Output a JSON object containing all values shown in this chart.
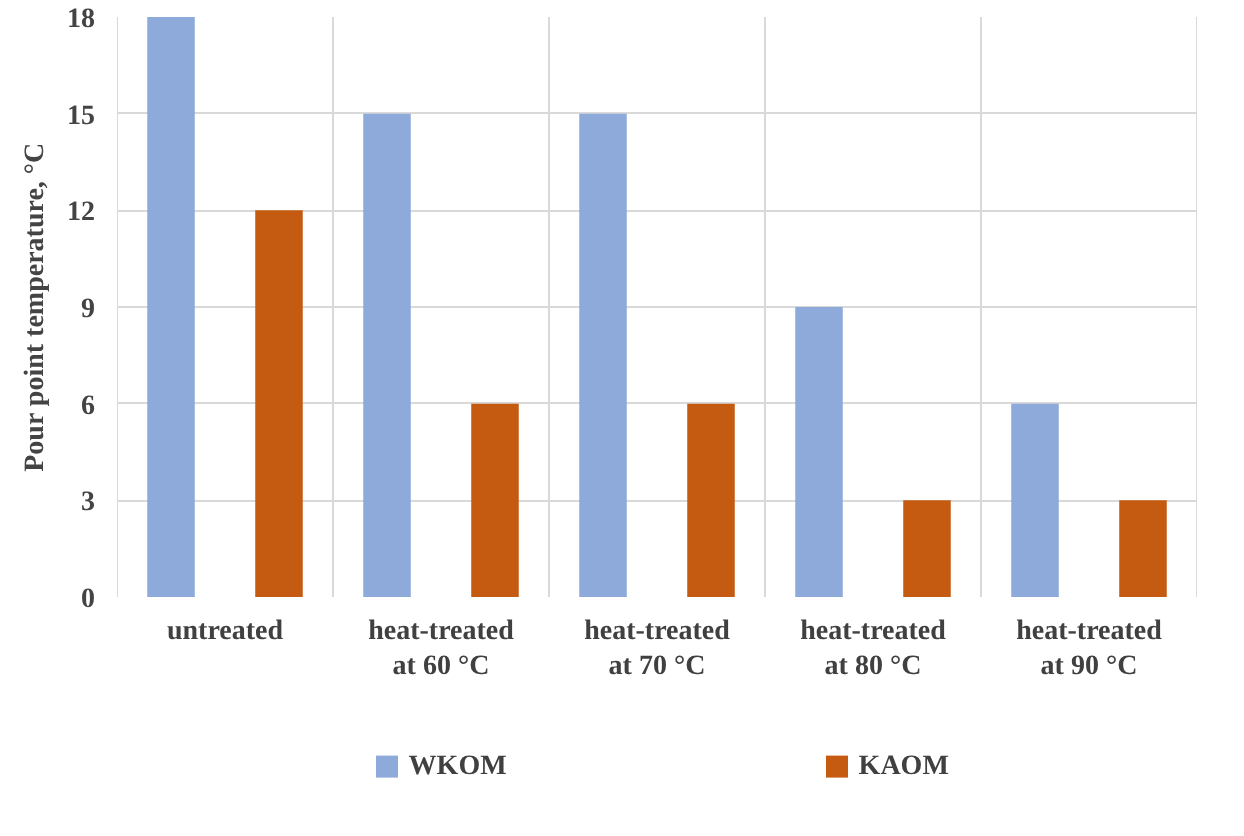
{
  "chart_data": {
    "type": "bar",
    "ylabel": "Pour point temperature, °C",
    "categories": [
      "untreated",
      "heat-treated\nat 60 °C",
      "heat-treated\nat 70 °C",
      "heat-treated\nat 80 °C",
      "heat-treated\nat 90 °C"
    ],
    "series": [
      {
        "name": "WKOM",
        "color": "#8eaadb",
        "values": [
          18,
          15,
          15,
          9,
          6
        ]
      },
      {
        "name": "KAOM",
        "color": "#c55a11",
        "values": [
          12,
          6,
          6,
          3,
          3
        ]
      }
    ],
    "ylim": [
      0,
      18
    ],
    "yticks": [
      0,
      3,
      6,
      9,
      12,
      15,
      18
    ],
    "grid": true,
    "legend": "bottom"
  }
}
